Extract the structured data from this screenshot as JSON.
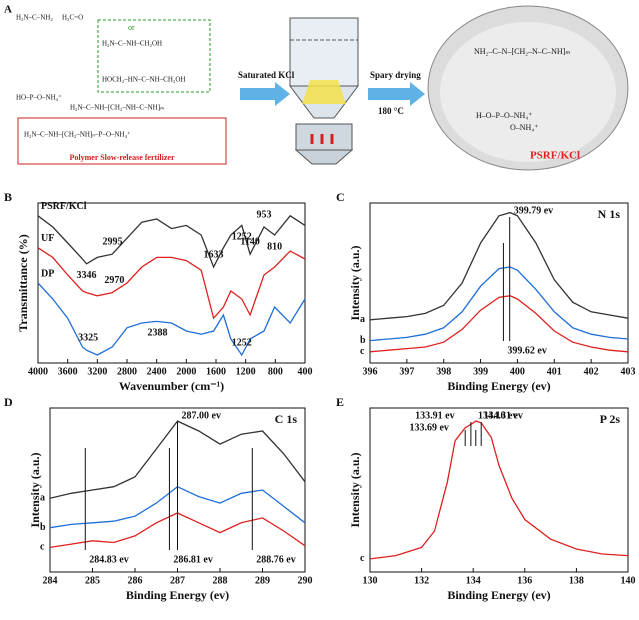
{
  "scheme": {
    "label": "A",
    "step1": "Saturated KCl",
    "step2": "Spary drying",
    "temperature": "180 °C",
    "caption": "Polymer Slow-release fertilizer",
    "or": "or",
    "product": "PSRF/KCl",
    "left_structures": [
      "H₂N–C–NH₂",
      "H₂C=O",
      "H₂N–C–NH–CH₂OH",
      "HOCH₂–HN–C–NH–CH₂OH",
      "HO–P–O–NH₄⁺",
      "H₂N–C–NH–[CH₂–NH–C–NH]ₘ",
      "H₂N–C–NH–[CH₂–NH]ₙ–P–O–NH₄⁺"
    ],
    "photo_structures": [
      "NH₂–C–N–[CH₂–N–C–NH]ₘ",
      "H–O–P–O–NH₄⁺",
      "O–NH₄⁺"
    ]
  },
  "chart_data": [
    {
      "type": "line",
      "panel": "B",
      "xlabel": "Wavenumber (cm⁻¹)",
      "ylabel": "Transmittance (%)",
      "x": [
        4000,
        3800,
        3600,
        3400,
        3346,
        3200,
        3000,
        2800,
        2600,
        2400,
        2200,
        2000,
        1800,
        1633,
        1500,
        1400,
        1252,
        1140,
        953,
        810,
        600,
        400
      ],
      "xlim": [
        4000,
        400
      ],
      "xticks": [
        4000,
        3600,
        3200,
        2800,
        2400,
        2000,
        1600,
        1200,
        800,
        400
      ],
      "ylim": [
        0,
        100
      ],
      "series": [
        {
          "name": "PSRF/KCl",
          "color": "#333333",
          "values": [
            92,
            85,
            75,
            65,
            62,
            66,
            68,
            78,
            88,
            90,
            84,
            86,
            80,
            60,
            72,
            80,
            86,
            68,
            85,
            80,
            92,
            86
          ],
          "peaks": [
            2995,
            3346,
            1633,
            1252,
            1140,
            810,
            953
          ]
        },
        {
          "name": "UF",
          "color": "#e02020",
          "values": [
            72,
            66,
            55,
            45,
            44,
            42,
            44,
            50,
            60,
            66,
            66,
            64,
            58,
            28,
            35,
            45,
            40,
            30,
            55,
            60,
            70,
            65
          ],
          "peaks": [
            2970
          ]
        },
        {
          "name": "DP",
          "color": "#1e6fd9",
          "values": [
            50,
            40,
            28,
            10,
            8,
            5,
            10,
            22,
            25,
            26,
            25,
            20,
            18,
            20,
            30,
            15,
            5,
            15,
            20,
            35,
            25,
            40
          ],
          "peaks": [
            3325,
            2388,
            1252
          ]
        }
      ]
    },
    {
      "type": "line",
      "panel": "C",
      "title": "N 1s",
      "xlabel": "Binding Energy (ev)",
      "ylabel": "Intensity (a.u.)",
      "x": [
        396,
        396.5,
        397,
        397.5,
        398,
        398.5,
        399,
        399.5,
        399.8,
        400,
        400.5,
        401,
        401.5,
        402,
        402.5,
        403
      ],
      "xlim": [
        396,
        403
      ],
      "xticks": [
        396,
        397,
        398,
        399,
        400,
        401,
        402,
        403
      ],
      "ylim": [
        0,
        100
      ],
      "series": [
        {
          "name": "a",
          "color": "#333333",
          "values": [
            27,
            28,
            29,
            31,
            36,
            50,
            75,
            92,
            94,
            92,
            75,
            52,
            38,
            32,
            30,
            28
          ]
        },
        {
          "name": "b",
          "color": "#1e6fd9",
          "values": [
            14,
            15,
            16,
            18,
            22,
            32,
            48,
            59,
            60,
            58,
            46,
            32,
            22,
            18,
            16,
            15
          ]
        },
        {
          "name": "c",
          "color": "#e02020",
          "values": [
            7,
            8,
            9,
            10,
            13,
            21,
            33,
            41,
            42,
            40,
            31,
            20,
            13,
            10,
            8,
            7
          ]
        }
      ],
      "annotations": [
        {
          "x": 399.79,
          "label": "399.79 ev"
        },
        {
          "x": 399.62,
          "label": "399.62 ev"
        }
      ]
    },
    {
      "type": "line",
      "panel": "D",
      "title": "C 1s",
      "xlabel": "Binding Energy (ev)",
      "ylabel": "Intensity (a.u.)",
      "x": [
        284,
        284.5,
        285,
        285.5,
        286,
        286.5,
        287,
        287.5,
        288,
        288.5,
        289,
        289.5,
        290
      ],
      "xlim": [
        284,
        290
      ],
      "xticks": [
        284,
        285,
        286,
        287,
        288,
        289,
        290
      ],
      "ylim": [
        0,
        100
      ],
      "series": [
        {
          "name": "a",
          "color": "#333333",
          "values": [
            45,
            48,
            50,
            52,
            58,
            75,
            92,
            86,
            78,
            84,
            86,
            72,
            55
          ]
        },
        {
          "name": "b",
          "color": "#1e6fd9",
          "values": [
            27,
            29,
            30,
            31,
            34,
            42,
            52,
            46,
            42,
            48,
            50,
            40,
            30
          ]
        },
        {
          "name": "c",
          "color": "#e02020",
          "values": [
            15,
            17,
            19,
            18,
            22,
            30,
            36,
            30,
            24,
            30,
            33,
            25,
            16
          ]
        }
      ],
      "annotations": [
        {
          "x": 287.0,
          "label": "287.00 ev"
        },
        {
          "x": 284.83,
          "label": "284.83 ev"
        },
        {
          "x": 286.81,
          "label": "286.81 ev"
        },
        {
          "x": 288.76,
          "label": "288.76 ev"
        }
      ]
    },
    {
      "type": "line",
      "panel": "E",
      "title": "P 2s",
      "xlabel": "Binding Energy (ev)",
      "ylabel": "Intensity (a.u.)",
      "x": [
        130,
        131,
        132,
        132.5,
        133,
        133.3,
        133.69,
        133.91,
        134.1,
        134.31,
        134.7,
        135,
        135.5,
        136,
        137,
        138,
        139,
        140
      ],
      "xlim": [
        130,
        140
      ],
      "xticks": [
        130,
        132,
        134,
        136,
        138,
        140
      ],
      "ylim": [
        0,
        100
      ],
      "series": [
        {
          "name": "c",
          "color": "#e02020",
          "values": [
            8,
            10,
            15,
            25,
            55,
            80,
            88,
            90,
            92,
            91,
            82,
            65,
            45,
            32,
            20,
            14,
            11,
            10
          ]
        }
      ],
      "annotations": [
        {
          "x": 133.91,
          "label": "133.91 ev"
        },
        {
          "x": 134.1,
          "label": "134.10 ev"
        },
        {
          "x": 134.31,
          "label": "134.31 ev"
        },
        {
          "x": 133.69,
          "label": "133.69 ev"
        }
      ]
    }
  ]
}
